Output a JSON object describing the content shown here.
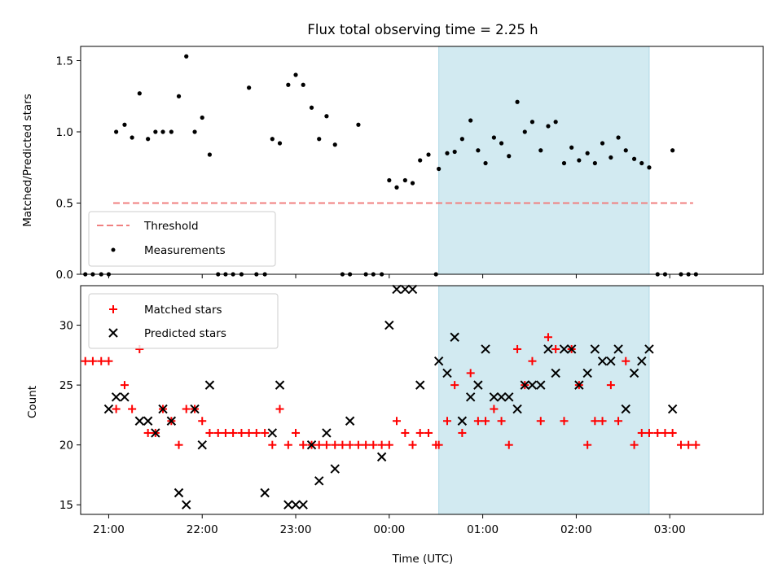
{
  "figure": {
    "title": "Flux total observing time = 2.25 h",
    "xlabel": "Time (UTC)",
    "x_ticks": [
      "21:00",
      "22:00",
      "23:00",
      "00:00",
      "01:00",
      "02:00",
      "03:00"
    ],
    "colors": {
      "threshold": "#f08080",
      "measurements": "#000000",
      "matched": "#ff0000",
      "predicted": "#000000",
      "span": "#add8e6"
    }
  },
  "chart_data": [
    {
      "type": "scatter",
      "panel": "top",
      "ylabel": "Matched/Predicted stars",
      "y_ticks": [
        "0.0",
        "0.5",
        "1.0",
        "1.5"
      ],
      "ylim": [
        0,
        1.6
      ],
      "x_unit": "hours relative to 00:00 UTC",
      "xlim": [
        -3.3,
        4.0
      ],
      "highlight_span": [
        0.53,
        2.78
      ],
      "legend": {
        "placement": "lower-left",
        "entries": [
          "Threshold",
          "Measurements"
        ]
      },
      "series": [
        {
          "name": "Threshold",
          "kind": "dashed-line",
          "x": [
            -3.3,
            3.25
          ],
          "y": [
            0.5,
            0.5
          ]
        },
        {
          "name": "Measurements",
          "kind": "dots",
          "x": [
            -3.25,
            -3.17,
            -3.08,
            -3.0,
            -2.92,
            -2.83,
            -2.75,
            -2.67,
            -2.58,
            -2.5,
            -2.42,
            -2.33,
            -2.25,
            -2.17,
            -2.08,
            -2.0,
            -1.92,
            -1.83,
            -1.75,
            -1.67,
            -1.58,
            -1.5,
            -1.42,
            -1.33,
            -1.25,
            -1.17,
            -1.08,
            -1.0,
            -0.92,
            -0.83,
            -0.75,
            -0.67,
            -0.58,
            -0.5,
            -0.42,
            -0.33,
            -0.25,
            -0.17,
            -0.08,
            0.0,
            0.08,
            0.17,
            0.25,
            0.33,
            0.42,
            0.5,
            0.53,
            0.62,
            0.7,
            0.78,
            0.87,
            0.95,
            1.03,
            1.12,
            1.2,
            1.28,
            1.37,
            1.45,
            1.53,
            1.62,
            1.7,
            1.78,
            1.87,
            1.95,
            2.03,
            2.12,
            2.2,
            2.28,
            2.37,
            2.45,
            2.53,
            2.62,
            2.7,
            2.78,
            2.87,
            2.95,
            3.03,
            3.12,
            3.2,
            3.28
          ],
          "y": [
            0,
            0,
            0,
            0,
            1.0,
            1.05,
            0.96,
            1.27,
            0.95,
            1.0,
            1.0,
            1.0,
            1.25,
            1.53,
            1.0,
            1.1,
            0.84,
            0,
            0,
            0,
            0,
            1.31,
            0,
            0,
            0.95,
            0.92,
            1.33,
            1.4,
            1.33,
            1.17,
            0.95,
            1.11,
            0.91,
            0,
            0,
            1.05,
            0,
            0,
            0,
            0.66,
            0.61,
            0.66,
            0.64,
            0.8,
            0.84,
            0,
            0.74,
            0.85,
            0.86,
            0.95,
            1.08,
            0.87,
            0.78,
            0.96,
            0.92,
            0.83,
            1.21,
            1.0,
            1.07,
            0.87,
            1.04,
            1.07,
            0.78,
            0.89,
            0.8,
            0.85,
            0.78,
            0.92,
            0.82,
            0.96,
            0.87,
            0.81,
            0.78,
            0.75,
            0,
            0,
            0.87,
            0,
            0,
            0
          ]
        }
      ]
    },
    {
      "type": "scatter",
      "panel": "bottom",
      "ylabel": "Count",
      "y_ticks": [
        "15",
        "20",
        "25",
        "30"
      ],
      "ylim": [
        14.2,
        33.3
      ],
      "x_unit": "hours relative to 00:00 UTC",
      "xlim": [
        -3.3,
        4.0
      ],
      "highlight_span": [
        0.53,
        2.78
      ],
      "legend": {
        "placement": "upper-left",
        "entries": [
          "Matched stars",
          "Predicted stars"
        ]
      },
      "series": [
        {
          "name": "Matched stars",
          "marker": "+",
          "x": [
            -3.25,
            -3.17,
            -3.08,
            -3.0,
            -2.92,
            -2.83,
            -2.75,
            -2.67,
            -2.58,
            -2.5,
            -2.42,
            -2.33,
            -2.25,
            -2.17,
            -2.08,
            -2.0,
            -1.92,
            -1.83,
            -1.75,
            -1.67,
            -1.58,
            -1.5,
            -1.42,
            -1.33,
            -1.25,
            -1.17,
            -1.08,
            -1.0,
            -0.92,
            -0.83,
            -0.75,
            -0.67,
            -0.58,
            -0.5,
            -0.42,
            -0.33,
            -0.25,
            -0.17,
            -0.08,
            0.0,
            0.08,
            0.17,
            0.25,
            0.33,
            0.42,
            0.5,
            0.53,
            0.62,
            0.7,
            0.78,
            0.87,
            0.95,
            1.03,
            1.12,
            1.2,
            1.28,
            1.37,
            1.45,
            1.53,
            1.62,
            1.7,
            1.78,
            1.87,
            1.95,
            2.03,
            2.12,
            2.2,
            2.28,
            2.37,
            2.45,
            2.53,
            2.62,
            2.7,
            2.78,
            2.87,
            2.95,
            3.03,
            3.12,
            3.2,
            3.28
          ],
          "y": [
            27,
            27,
            27,
            27,
            23,
            25,
            23,
            28,
            21,
            21,
            23,
            22,
            20,
            23,
            23,
            22,
            21,
            21,
            21,
            21,
            21,
            21,
            21,
            21,
            20,
            23,
            20,
            21,
            20,
            20,
            20,
            20,
            20,
            20,
            20,
            20,
            20,
            20,
            20,
            20,
            22,
            21,
            20,
            21,
            21,
            20,
            20,
            22,
            25,
            21,
            26,
            22,
            22,
            23,
            22,
            20,
            28,
            25,
            27,
            22,
            29,
            28,
            22,
            28,
            25,
            20,
            22,
            22,
            25,
            22,
            27,
            20,
            21,
            21,
            21,
            21,
            21,
            20,
            20,
            20
          ]
        },
        {
          "name": "Predicted stars",
          "marker": "x",
          "x": [
            -3.0,
            -2.92,
            -2.83,
            -2.67,
            -2.58,
            -2.5,
            -2.42,
            -2.33,
            -2.25,
            -2.17,
            -2.08,
            -2.0,
            -1.92,
            -1.33,
            -1.25,
            -1.17,
            -1.08,
            -1.0,
            -0.92,
            -0.83,
            -0.75,
            -0.67,
            -0.58,
            -0.42,
            -0.08,
            0.0,
            0.08,
            0.17,
            0.25,
            0.33,
            0.53,
            0.62,
            0.7,
            0.78,
            0.87,
            0.95,
            1.03,
            1.12,
            1.2,
            1.28,
            1.37,
            1.45,
            1.53,
            1.62,
            1.7,
            1.78,
            1.87,
            1.95,
            2.03,
            2.12,
            2.2,
            2.28,
            2.37,
            2.45,
            2.53,
            2.62,
            2.7,
            2.78,
            3.03
          ],
          "y": [
            23,
            24,
            24,
            22,
            22,
            21,
            23,
            22,
            16,
            15,
            23,
            20,
            25,
            16,
            21,
            25,
            15,
            15,
            15,
            20,
            17,
            21,
            18,
            22,
            19,
            30,
            33,
            33,
            33,
            25,
            27,
            26,
            29,
            22,
            24,
            25,
            28,
            24,
            24,
            24,
            23,
            25,
            25,
            25,
            28,
            26,
            28,
            28,
            25,
            26,
            28,
            27,
            27,
            28,
            23,
            26,
            27,
            28,
            23
          ]
        }
      ]
    }
  ]
}
